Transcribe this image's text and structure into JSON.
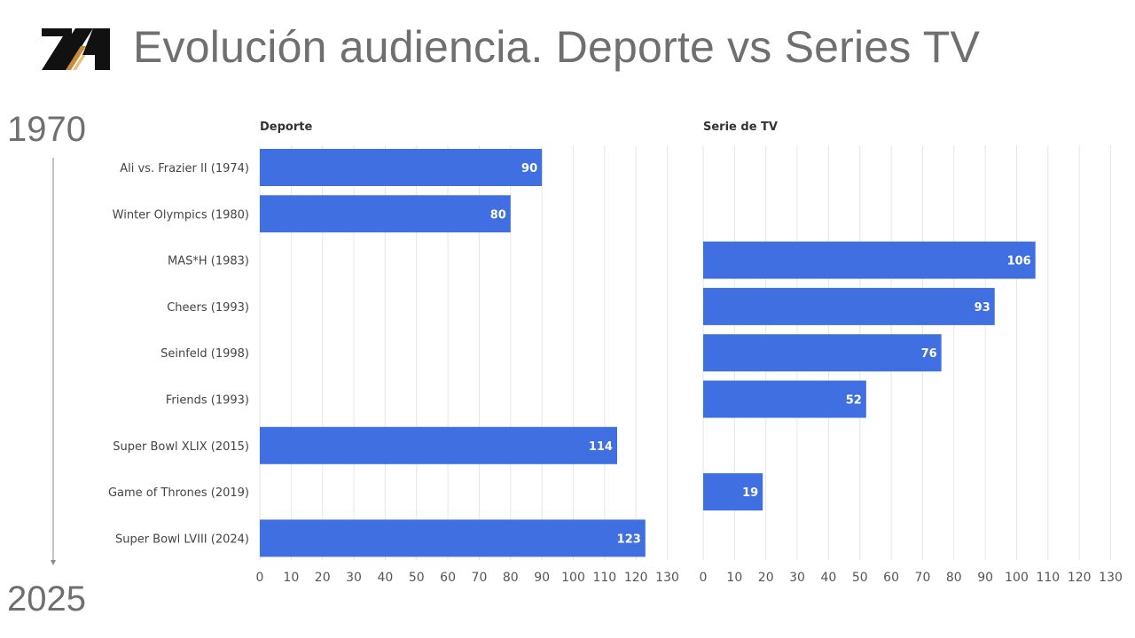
{
  "header": {
    "title": "Evolución audiencia. Deporte vs Series TV",
    "logo": "ZA-logo"
  },
  "timeline": {
    "start": "1970",
    "end": "2025"
  },
  "colors": {
    "bar": "#3f6fe0",
    "grid": "#e6e6e6",
    "title": "#6f6f6f"
  },
  "chart_data": {
    "type": "bar",
    "orientation": "horizontal",
    "categories": [
      "Ali vs. Frazier II (1974)",
      "Winter Olympics (1980)",
      "MAS*H (1983)",
      "Cheers (1993)",
      "Seinfeld (1998)",
      "Friends (1993)",
      "Super Bowl XLIX (2015)",
      "Game of Thrones (2019)",
      "Super Bowl LVIII (2024)"
    ],
    "series": [
      {
        "name": "Deporte",
        "values": [
          90,
          80,
          null,
          null,
          null,
          null,
          114,
          null,
          123
        ]
      },
      {
        "name": "Serie de TV",
        "values": [
          null,
          null,
          106,
          93,
          76,
          52,
          null,
          19,
          null
        ]
      }
    ],
    "xlim": [
      0,
      130
    ],
    "xticks": [
      0,
      10,
      20,
      30,
      40,
      50,
      60,
      70,
      80,
      90,
      100,
      110,
      120,
      130
    ],
    "grid": true,
    "legend": "panel titles"
  }
}
